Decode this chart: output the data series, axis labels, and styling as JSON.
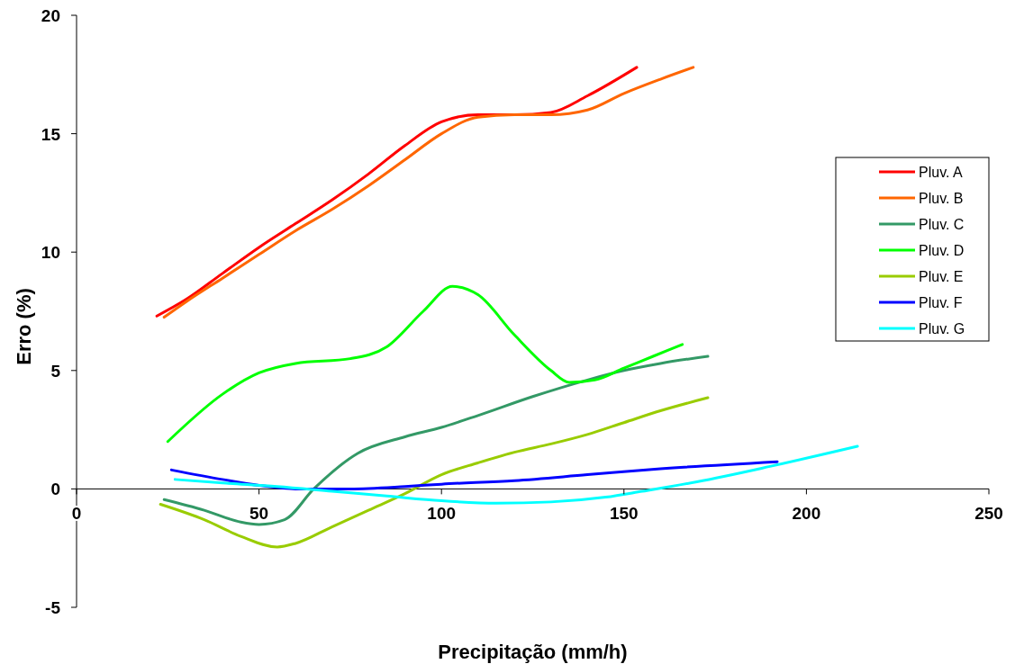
{
  "chart_data": {
    "type": "line",
    "xlabel": "Precipitação (mm/h)",
    "ylabel": "Erro (%)",
    "xlim": [
      0,
      250
    ],
    "ylim": [
      -5,
      20
    ],
    "xticks": [
      0,
      50,
      100,
      150,
      200,
      250
    ],
    "yticks": [
      -5,
      0,
      5,
      10,
      15,
      20
    ],
    "grid": false,
    "legend": "right",
    "marker": "none",
    "line_style": "solid",
    "series": [
      {
        "name": "Pluv. A",
        "color": "#ff0000",
        "x": [
          22,
          30,
          40,
          50,
          60,
          70,
          80,
          90,
          100,
          110,
          120,
          130,
          140,
          153.5
        ],
        "values": [
          7.3,
          8.0,
          9.1,
          10.2,
          11.2,
          12.2,
          13.3,
          14.5,
          15.5,
          15.8,
          15.8,
          15.9,
          16.6,
          17.8
        ]
      },
      {
        "name": "Pluv. B",
        "color": "#ff6600",
        "x": [
          24,
          30,
          40,
          50,
          60,
          70,
          80,
          90,
          100,
          110,
          120,
          130,
          140,
          150,
          160,
          169
        ],
        "values": [
          7.25,
          7.9,
          8.9,
          9.9,
          10.9,
          11.8,
          12.8,
          13.9,
          15.0,
          15.7,
          15.8,
          15.8,
          16.0,
          16.7,
          17.3,
          17.8
        ]
      },
      {
        "name": "Pluv. C",
        "color": "#339966",
        "x": [
          24,
          35,
          45,
          50,
          57,
          65,
          77,
          90,
          100,
          110,
          125,
          140,
          150,
          160,
          173
        ],
        "values": [
          -0.45,
          -0.9,
          -1.4,
          -1.5,
          -1.3,
          0,
          1.5,
          2.2,
          2.6,
          3.1,
          3.9,
          4.6,
          5.0,
          5.3,
          5.6
        ]
      },
      {
        "name": "Pluv. D",
        "color": "#00ff00",
        "x": [
          25,
          40,
          50,
          60,
          75,
          85,
          95,
          103,
          110,
          120,
          130,
          135,
          142,
          150,
          158,
          166
        ],
        "values": [
          2.0,
          4.0,
          4.9,
          5.3,
          5.5,
          6.0,
          7.5,
          8.55,
          8.2,
          6.5,
          5.0,
          4.5,
          4.6,
          5.1,
          5.6,
          6.1
        ]
      },
      {
        "name": "Pluv. E",
        "color": "#99cc00",
        "x": [
          23,
          35,
          45,
          55,
          60,
          70,
          80,
          90,
          100,
          110,
          120,
          130,
          140,
          150,
          160,
          173
        ],
        "values": [
          -0.65,
          -1.3,
          -2.0,
          -2.45,
          -2.3,
          -1.6,
          -0.9,
          -0.2,
          0.6,
          1.1,
          1.55,
          1.9,
          2.3,
          2.8,
          3.3,
          3.85
        ]
      },
      {
        "name": "Pluv. F",
        "color": "#0000ff",
        "x": [
          26,
          40,
          50,
          60,
          75,
          90,
          100,
          120,
          140,
          160,
          192
        ],
        "values": [
          0.8,
          0.4,
          0.15,
          0.0,
          0.0,
          0.1,
          0.2,
          0.35,
          0.6,
          0.85,
          1.15
        ]
      },
      {
        "name": "Pluv. G",
        "color": "#00ffff",
        "x": [
          27,
          40,
          55,
          70,
          85,
          100,
          115,
          130,
          145,
          155,
          170,
          190,
          214
        ],
        "values": [
          0.4,
          0.25,
          0.1,
          -0.1,
          -0.3,
          -0.5,
          -0.6,
          -0.55,
          -0.35,
          -0.1,
          0.3,
          0.95,
          1.8
        ]
      }
    ]
  }
}
